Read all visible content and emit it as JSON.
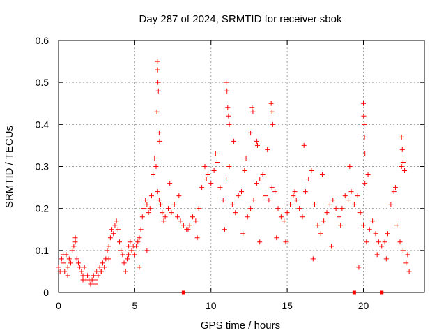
{
  "chart_data": {
    "type": "scatter",
    "title": "Day 287 of 2024, SRMTID for receiver sbok",
    "xlabel": "GPS time / hours",
    "ylabel": "SRMTID / TECUs",
    "xlim": [
      0,
      24
    ],
    "ylim": [
      0,
      0.6
    ],
    "x_ticks": [
      0,
      5,
      10,
      15,
      20
    ],
    "y_ticks": [
      0,
      0.1,
      0.2,
      0.3,
      0.4,
      0.5,
      0.6
    ],
    "x_tick_labels": [
      "0",
      "5",
      "10",
      "15",
      "20"
    ],
    "y_tick_labels": [
      "0",
      "0.1",
      "0.2",
      "0.3",
      "0.4",
      "0.5",
      "0.6"
    ],
    "grid": true,
    "marker": "plus",
    "color": "#ff0000",
    "series": [
      {
        "name": "SRMTID",
        "x": [
          0.0,
          0.1,
          0.2,
          0.3,
          0.4,
          0.5,
          0.6,
          0.7,
          0.8,
          0.9,
          1.0,
          1.1,
          1.2,
          1.3,
          1.4,
          1.5,
          1.6,
          1.7,
          1.8,
          1.9,
          2.0,
          2.1,
          2.2,
          2.3,
          2.4,
          2.5,
          2.6,
          2.7,
          2.8,
          2.9,
          3.0,
          3.1,
          3.2,
          3.3,
          3.4,
          3.5,
          3.6,
          3.7,
          3.8,
          3.9,
          4.0,
          4.1,
          4.2,
          4.3,
          4.4,
          4.5,
          4.6,
          4.7,
          4.8,
          4.9,
          5.0,
          5.1,
          5.2,
          5.3,
          5.4,
          5.5,
          5.6,
          5.7,
          5.8,
          5.9,
          6.0,
          6.1,
          6.2,
          6.3,
          6.4,
          6.5,
          6.6,
          6.7,
          6.8,
          6.9,
          7.0,
          7.2,
          7.4,
          7.6,
          7.8,
          8.0,
          8.2,
          8.4,
          8.6,
          8.8,
          9.0,
          9.2,
          9.4,
          9.6,
          9.8,
          10.0,
          10.2,
          10.4,
          10.6,
          10.8,
          11.0,
          11.2,
          11.4,
          11.6,
          11.8,
          12.0,
          12.2,
          12.4,
          12.6,
          12.8,
          13.0,
          13.2,
          13.4,
          13.6,
          13.8,
          14.0,
          14.2,
          14.4,
          14.6,
          14.8,
          15.0,
          15.2,
          15.4,
          15.6,
          15.8,
          16.0,
          16.2,
          16.4,
          16.6,
          16.8,
          17.0,
          17.2,
          17.4,
          17.6,
          17.8,
          18.0,
          18.2,
          18.4,
          18.6,
          18.8,
          19.0,
          19.2,
          19.4,
          19.6,
          19.8,
          20.0,
          20.1,
          20.2,
          20.4,
          20.6,
          20.8,
          21.0,
          21.2,
          21.4,
          21.6,
          21.8,
          22.0,
          22.2,
          22.4,
          22.6,
          22.8,
          23.0,
          6.45,
          6.48,
          6.5,
          6.52,
          6.55,
          6.6,
          6.63,
          11.0,
          11.05,
          11.1,
          11.15,
          11.2,
          12.7,
          12.75,
          13.0,
          13.05,
          13.95,
          14.0,
          14.05,
          20.0,
          20.02,
          20.05,
          20.07,
          20.1,
          22.5,
          22.55,
          22.6,
          22.7,
          0.3,
          0.6,
          1.1,
          1.6,
          2.4,
          2.8,
          3.3,
          4.6,
          5.3,
          5.8,
          7.3,
          7.9,
          8.5,
          9.1,
          9.7,
          10.3,
          10.9,
          11.5,
          12.1,
          12.3,
          12.6,
          13.2,
          13.7,
          14.3,
          14.9,
          15.5,
          16.1,
          16.7,
          17.3,
          17.9,
          18.5,
          19.1,
          19.7,
          20.3,
          20.9,
          21.5,
          22.1,
          22.5,
          22.9
        ],
        "y": [
          0.06,
          0.05,
          0.08,
          0.07,
          0.05,
          0.09,
          0.06,
          0.08,
          0.07,
          0.1,
          0.11,
          0.13,
          0.08,
          0.07,
          0.06,
          0.05,
          0.04,
          0.06,
          0.03,
          0.04,
          0.03,
          0.02,
          0.03,
          0.04,
          0.03,
          0.05,
          0.04,
          0.06,
          0.05,
          0.07,
          0.06,
          0.08,
          0.1,
          0.11,
          0.13,
          0.15,
          0.14,
          0.16,
          0.17,
          0.15,
          0.12,
          0.1,
          0.09,
          0.07,
          0.05,
          0.08,
          0.11,
          0.12,
          0.1,
          0.11,
          0.09,
          0.11,
          0.12,
          0.13,
          0.15,
          0.18,
          0.2,
          0.22,
          0.21,
          0.19,
          0.2,
          0.23,
          0.28,
          0.32,
          0.3,
          0.24,
          0.22,
          0.21,
          0.19,
          0.17,
          0.18,
          0.2,
          0.19,
          0.21,
          0.18,
          0.17,
          0.16,
          0.15,
          0.16,
          0.18,
          0.17,
          0.2,
          0.25,
          0.3,
          0.28,
          0.26,
          0.29,
          0.31,
          0.25,
          0.22,
          0.27,
          0.3,
          0.21,
          0.19,
          0.23,
          0.24,
          0.29,
          0.18,
          0.2,
          0.22,
          0.26,
          0.27,
          0.28,
          0.23,
          0.22,
          0.25,
          0.24,
          0.2,
          0.18,
          0.17,
          0.19,
          0.21,
          0.23,
          0.22,
          0.2,
          0.18,
          0.24,
          0.27,
          0.29,
          0.21,
          0.16,
          0.14,
          0.17,
          0.19,
          0.21,
          0.22,
          0.2,
          0.18,
          0.2,
          0.23,
          0.22,
          0.24,
          0.21,
          0.23,
          0.19,
          0.16,
          0.26,
          0.12,
          0.15,
          0.17,
          0.14,
          0.12,
          0.11,
          0.12,
          0.14,
          0.21,
          0.24,
          0.16,
          0.12,
          0.1,
          0.07,
          0.05,
          0.43,
          0.55,
          0.53,
          0.5,
          0.48,
          0.38,
          0.36,
          0.5,
          0.48,
          0.44,
          0.42,
          0.4,
          0.44,
          0.43,
          0.36,
          0.35,
          0.45,
          0.43,
          0.4,
          0.45,
          0.42,
          0.4,
          0.37,
          0.33,
          0.37,
          0.34,
          0.31,
          0.29,
          0.09,
          0.04,
          0.12,
          0.03,
          0.02,
          0.05,
          0.08,
          0.09,
          0.06,
          0.1,
          0.26,
          0.23,
          0.15,
          0.13,
          0.27,
          0.33,
          0.15,
          0.36,
          0.14,
          0.32,
          0.38,
          0.12,
          0.34,
          0.13,
          0.12,
          0.24,
          0.35,
          0.08,
          0.28,
          0.11,
          0.16,
          0.3,
          0.06,
          0.28,
          0.09,
          0.08,
          0.25,
          0.3,
          0.09
        ]
      }
    ],
    "zero_markers": [
      {
        "x": 8.2,
        "y": 0
      },
      {
        "x": 19.4,
        "y": 0
      },
      {
        "x": 21.2,
        "y": 0
      }
    ]
  }
}
